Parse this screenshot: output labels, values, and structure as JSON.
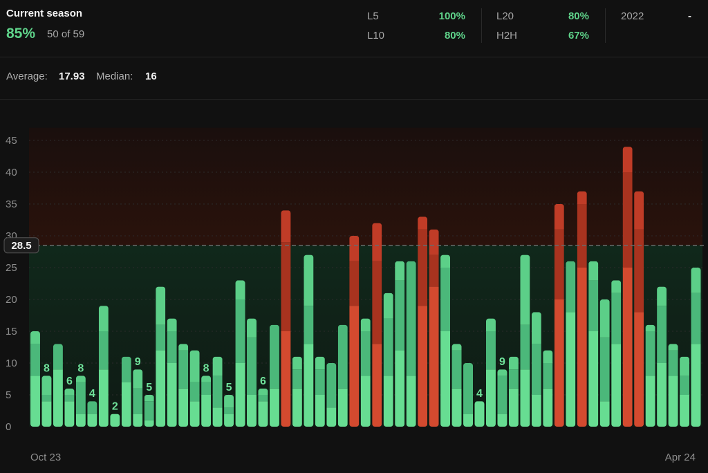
{
  "header": {
    "title": "Current season",
    "hit_rate": "85%",
    "hit_count": "50 of 59",
    "stats": [
      {
        "label": "L5",
        "value": "100%"
      },
      {
        "label": "L10",
        "value": "80%"
      },
      {
        "label": "L20",
        "value": "80%"
      },
      {
        "label": "H2H",
        "value": "67%"
      },
      {
        "label": "2022",
        "value": "-"
      }
    ]
  },
  "summary": {
    "average_label": "Average:",
    "average_value": "17.93",
    "median_label": "Median:",
    "median_value": "16"
  },
  "colors": {
    "under": "#6fe29a",
    "over": "#c9412a",
    "accent": "#5fd38a"
  },
  "chart_data": {
    "type": "bar",
    "stacked_segments": true,
    "threshold": 28.5,
    "threshold_label": "28.5",
    "ylim": [
      0,
      47
    ],
    "yticks": [
      0,
      5,
      10,
      15,
      20,
      25,
      30,
      35,
      40,
      45
    ],
    "x_start_label": "Oct 23",
    "x_end_label": "Apr 24",
    "grid": true,
    "values": [
      15,
      8,
      13,
      6,
      8,
      4,
      19,
      2,
      11,
      9,
      5,
      22,
      17,
      13,
      12,
      8,
      11,
      5,
      23,
      17,
      6,
      16,
      34,
      11,
      27,
      11,
      10,
      16,
      30,
      17,
      32,
      21,
      26,
      26,
      33,
      31,
      27,
      13,
      10,
      4,
      17,
      9,
      11,
      27,
      18,
      12,
      35,
      26,
      37,
      26,
      20,
      23,
      44,
      37,
      16,
      22,
      13,
      11,
      25
    ],
    "segments": [
      [
        8,
        5,
        2
      ],
      [
        4,
        1,
        3
      ],
      [
        9,
        4
      ],
      [
        4,
        1,
        1
      ],
      [
        2,
        5,
        1
      ],
      [
        2,
        2
      ],
      [
        9,
        6,
        4
      ],
      [
        2
      ],
      [
        7,
        4
      ],
      [
        2,
        4,
        3
      ],
      [
        1,
        3,
        1
      ],
      [
        12,
        4,
        6
      ],
      [
        10,
        5,
        2
      ],
      [
        6,
        6,
        1
      ],
      [
        4,
        3,
        5
      ],
      [
        5,
        2,
        1
      ],
      [
        3,
        5,
        3
      ],
      [
        2,
        1,
        2
      ],
      [
        10,
        10,
        3
      ],
      [
        5,
        9,
        3
      ],
      [
        4,
        1,
        1
      ],
      [
        6,
        10
      ],
      [
        15,
        14,
        5
      ],
      [
        6,
        3,
        2
      ],
      [
        13,
        6,
        8
      ],
      [
        5,
        4,
        2
      ],
      [
        3,
        7
      ],
      [
        6,
        10
      ],
      [
        19,
        7,
        4
      ],
      [
        8,
        7,
        2
      ],
      [
        13,
        13,
        6
      ],
      [
        8,
        9,
        4
      ],
      [
        12,
        11,
        3
      ],
      [
        8,
        18
      ],
      [
        19,
        12,
        2
      ],
      [
        22,
        5,
        4
      ],
      [
        15,
        10,
        2
      ],
      [
        6,
        6,
        1
      ],
      [
        2,
        8
      ],
      [
        4
      ],
      [
        9,
        6,
        2
      ],
      [
        2,
        6,
        1
      ],
      [
        6,
        3,
        2
      ],
      [
        9,
        7,
        11
      ],
      [
        5,
        8,
        5
      ],
      [
        6,
        4,
        2
      ],
      [
        20,
        11,
        4
      ],
      [
        18,
        8
      ],
      [
        25,
        10,
        2
      ],
      [
        15,
        8,
        3
      ],
      [
        4,
        10,
        6
      ],
      [
        13,
        8,
        2
      ],
      [
        25,
        15,
        4
      ],
      [
        18,
        13,
        6
      ],
      [
        8,
        7,
        1
      ],
      [
        10,
        9,
        3
      ],
      [
        8,
        4,
        1
      ],
      [
        5,
        3,
        3
      ],
      [
        13,
        8,
        4
      ]
    ],
    "data_labels": [
      {
        "index": 1,
        "text": "8"
      },
      {
        "index": 3,
        "text": "6"
      },
      {
        "index": 4,
        "text": "8"
      },
      {
        "index": 5,
        "text": "4"
      },
      {
        "index": 7,
        "text": "2"
      },
      {
        "index": 9,
        "text": "9"
      },
      {
        "index": 10,
        "text": "5"
      },
      {
        "index": 15,
        "text": "8"
      },
      {
        "index": 17,
        "text": "5"
      },
      {
        "index": 20,
        "text": "6"
      },
      {
        "index": 39,
        "text": "4"
      },
      {
        "index": 41,
        "text": "9"
      }
    ]
  }
}
